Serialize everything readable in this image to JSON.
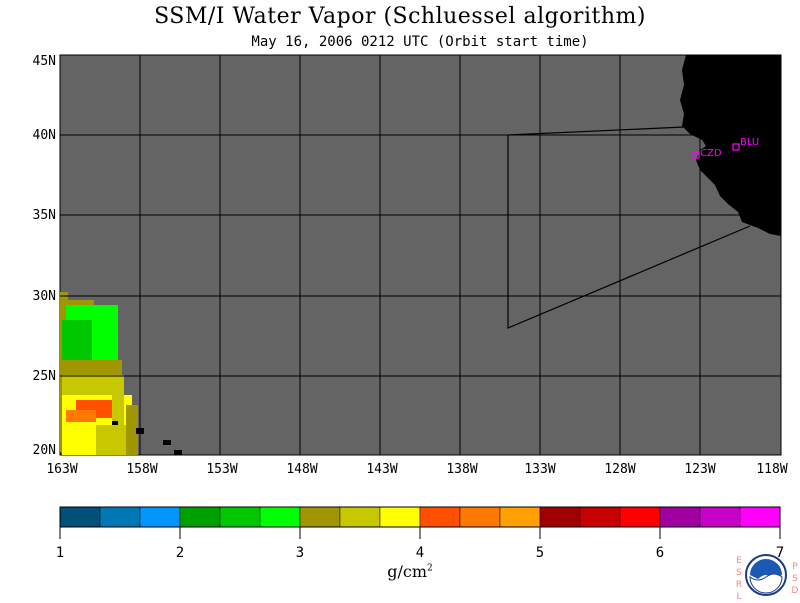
{
  "title": "SSM/I Water Vapor (Schluessel algorithm)",
  "subtitle": "May 16, 2006  0212 UTC  (Orbit start time)",
  "lat_labels": [
    "45N",
    "40N",
    "35N",
    "30N",
    "25N",
    "20N"
  ],
  "lon_labels": [
    "163W",
    "158W",
    "153W",
    "148W",
    "143W",
    "138W",
    "133W",
    "128W",
    "123W",
    "118W"
  ],
  "stations": [
    "CZD",
    "BLU"
  ],
  "colorbar": {
    "ticks": [
      "1",
      "2",
      "3",
      "4",
      "5",
      "6",
      "7"
    ],
    "unit": "g/cm",
    "unit_exp": "2",
    "colors": [
      "#00507a",
      "#0078b4",
      "#0096ff",
      "#00a000",
      "#00c800",
      "#00ff00",
      "#a09600",
      "#c8c800",
      "#ffff00",
      "#ff5000",
      "#ff7800",
      "#ffa000",
      "#a00000",
      "#c80000",
      "#ff0000",
      "#a000a0",
      "#c800c8",
      "#ff00ff"
    ]
  },
  "map_colors": {
    "nodata": "#646464",
    "land": "#000000",
    "station": "#ff00ff"
  },
  "logo_letters_left": [
    "E",
    "S",
    "R",
    "L"
  ],
  "logo_letters_right": [
    "P",
    "S",
    "D"
  ]
}
